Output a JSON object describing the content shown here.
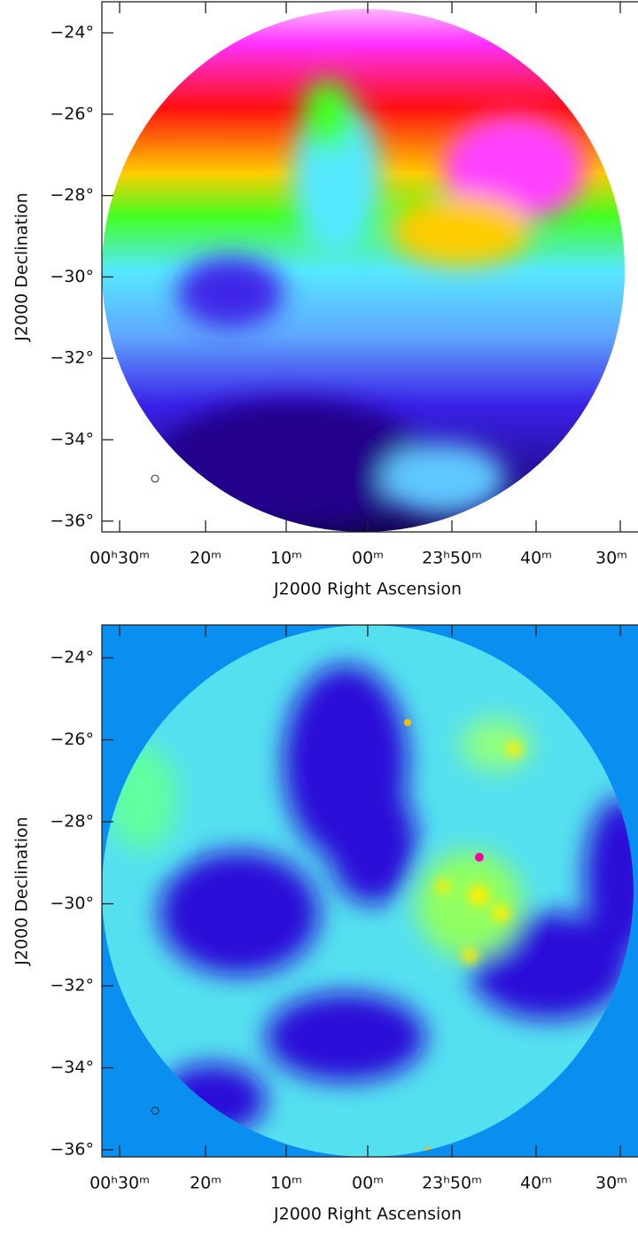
{
  "panels": [
    {
      "y_label": "J2000 Declination",
      "x_label": "J2000 Right Ascension",
      "yticks": [
        "−24°",
        "−26°",
        "−28°",
        "−30°",
        "−32°",
        "−34°",
        "−36°"
      ],
      "xticks": [
        "00ʰ30ᵐ",
        "20ᵐ",
        "10ᵐ",
        "00ᵐ",
        "23ʰ50ᵐ",
        "40ᵐ",
        "30ᵐ"
      ]
    },
    {
      "y_label": "J2000 Declination",
      "x_label": "J2000 Right Ascension",
      "yticks": [
        "−24°",
        "−26°",
        "−28°",
        "−30°",
        "−32°",
        "−34°",
        "−36°"
      ],
      "xticks": [
        "00ʰ30ᵐ",
        "20ᵐ",
        "10ᵐ",
        "00ᵐ",
        "23ʰ50ᵐ",
        "40ᵐ",
        "30ᵐ"
      ]
    }
  ]
}
